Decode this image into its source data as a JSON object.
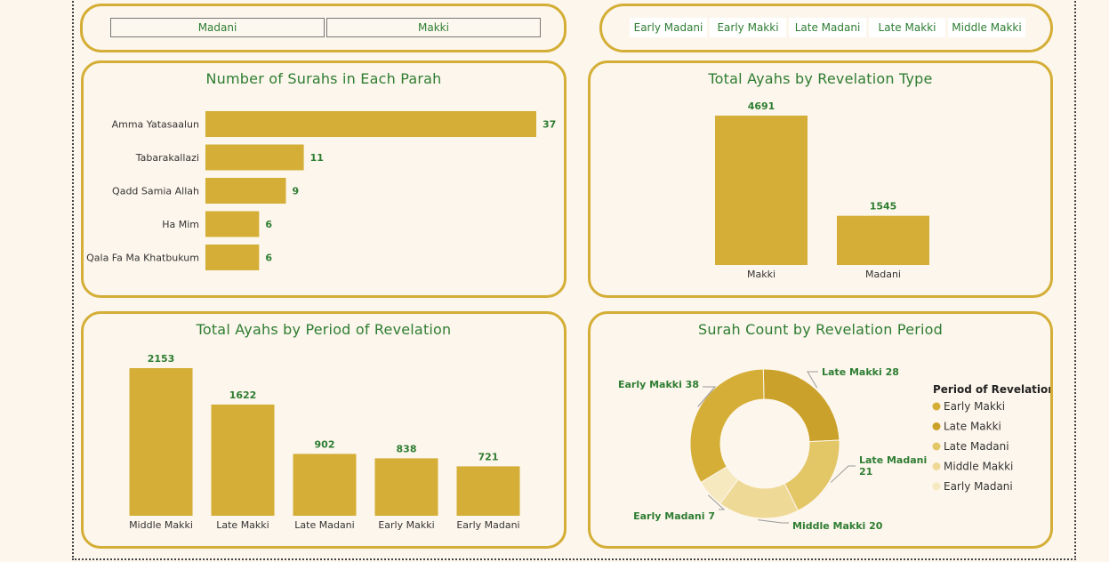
{
  "slicer_type": {
    "options": [
      "Madani",
      "Makki"
    ]
  },
  "slicer_period": {
    "options": [
      "Early Madani",
      "Early Makki",
      "Late Madani",
      "Late Makki",
      "Middle Makki"
    ]
  },
  "colors": {
    "gold": "#d4ae36",
    "green": "#2e7d32",
    "background": "#fdf6ec"
  },
  "chart_data": [
    {
      "type": "bar",
      "orientation": "horizontal",
      "title": "Number of Surahs in Each Parah",
      "categories": [
        "Amma Yatasaalun",
        "Tabarakallazi",
        "Qadd Samia Allah",
        "Ha Mim",
        "Qala Fa Ma Khatbukum"
      ],
      "values": [
        37,
        11,
        9,
        6,
        6
      ],
      "xlim": [
        0,
        37
      ],
      "grid": false,
      "color": "#d4ae36"
    },
    {
      "type": "bar",
      "title": "Total Ayahs by Revelation Type",
      "categories": [
        "Makki",
        "Madani"
      ],
      "values": [
        4691,
        1545
      ],
      "ylim": [
        0,
        4691
      ],
      "grid": false,
      "color": "#d4ae36"
    },
    {
      "type": "bar",
      "title": "Total Ayahs by Period of Revelation",
      "categories": [
        "Middle Makki",
        "Late Makki",
        "Late Madani",
        "Early Makki",
        "Early Madani"
      ],
      "values": [
        2153,
        1622,
        902,
        838,
        721
      ],
      "ylim": [
        0,
        2153
      ],
      "grid": false,
      "color": "#d4ae36"
    },
    {
      "type": "pie",
      "donut": true,
      "title": "Surah Count by Revelation Period",
      "legend_title": "Period of Revelation",
      "legend_position": "right",
      "slices": [
        {
          "name": "Late Makki",
          "value": 28,
          "label": "Late Makki 28",
          "color": "#caa12a"
        },
        {
          "name": "Late Madani",
          "value": 21,
          "label": "Late Madani 21",
          "color": "#e3c665"
        },
        {
          "name": "Middle Makki",
          "value": 20,
          "label": "Middle Makki 20",
          "color": "#eed997"
        },
        {
          "name": "Early Madani",
          "value": 7,
          "label": "Early Madani 7",
          "color": "#f6e9bf"
        },
        {
          "name": "Early Makki",
          "value": 38,
          "label": "Early Makki 38",
          "color": "#d4ae36"
        }
      ],
      "legend": [
        "Early Makki",
        "Late Makki",
        "Late Madani",
        "Middle Makki",
        "Early Madani"
      ]
    }
  ]
}
